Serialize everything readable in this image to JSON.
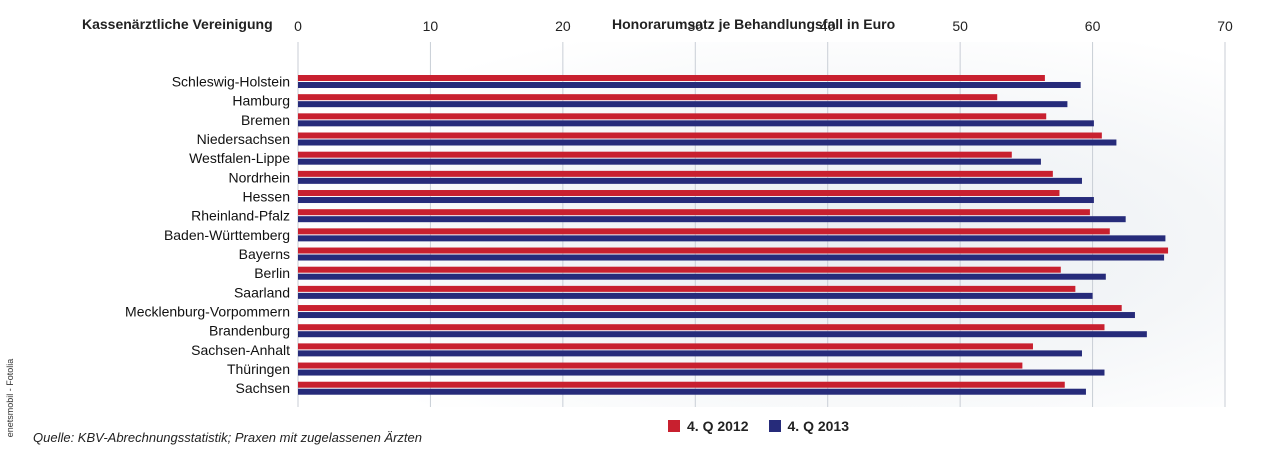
{
  "header": {
    "left_title": "Kassenärztliche Vereinigung",
    "center_title": "Honorarumsatz je Behandlungsfall in Euro"
  },
  "footer": {
    "source": "Quelle: KBV-Abrechnungsstatistik; Praxen mit zugelassenen Ärzten",
    "credit": "enetsmobil - Fotolia"
  },
  "colors": {
    "q2012": "#c8202f",
    "q2013": "#262b7a",
    "grid": "#c9ced6"
  },
  "chart_data": {
    "type": "bar",
    "orientation": "horizontal",
    "xlabel": "Honorarumsatz je Behandlungsfall in Euro",
    "ylabel": "Kassenärztliche Vereinigung",
    "xlim": [
      0,
      70
    ],
    "xticks": [
      0,
      10,
      20,
      30,
      40,
      50,
      60,
      70
    ],
    "grid": true,
    "legend_position": "bottom",
    "categories": [
      "Schleswig-Holstein",
      "Hamburg",
      "Bremen",
      "Niedersachsen",
      "Westfalen-Lippe",
      "Nordrhein",
      "Hessen",
      "Rheinland-Pfalz",
      "Baden-Württemberg",
      "Bayerns",
      "Berlin",
      "Saarland",
      "Mecklenburg-Vorpommern",
      "Brandenburg",
      "Sachsen-Anhalt",
      "Thüringen",
      "Sachsen"
    ],
    "series": [
      {
        "name": "4. Q 2012",
        "values": [
          56.4,
          52.8,
          56.5,
          60.7,
          53.9,
          57.0,
          57.5,
          59.8,
          61.3,
          65.7,
          57.6,
          58.7,
          62.2,
          60.9,
          55.5,
          54.7,
          57.9
        ]
      },
      {
        "name": "4. Q 2013",
        "values": [
          59.1,
          58.1,
          60.1,
          61.8,
          56.1,
          59.2,
          60.1,
          62.5,
          65.5,
          65.4,
          61.0,
          60.0,
          63.2,
          64.1,
          59.2,
          60.9,
          59.5
        ]
      }
    ]
  }
}
